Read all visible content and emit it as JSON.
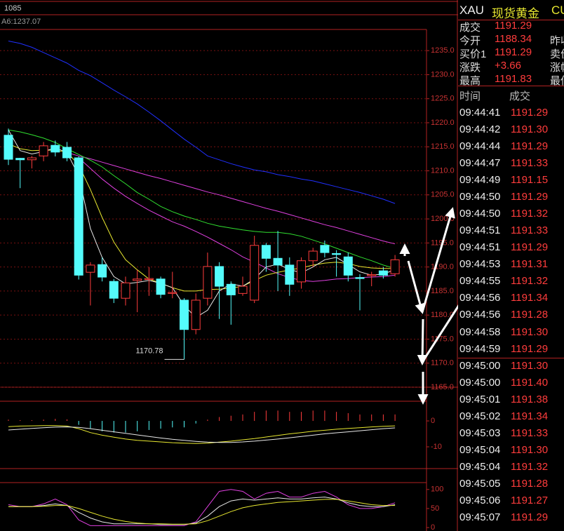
{
  "top_bar": {
    "code": "1085",
    "ma_label": "A6:1237.07"
  },
  "chart_data": [
    {
      "type": "candlestick",
      "up_color": "#ff3c3c",
      "down_color": "#54fcfc",
      "grid": true,
      "ylim": [
        1165,
        1239.4
      ],
      "yticks": [
        {
          "value": 1165,
          "label": "1165.0"
        },
        {
          "value": 1170,
          "label": "1170.0"
        },
        {
          "value": 1175,
          "label": "1175.0"
        },
        {
          "value": 1180,
          "label": "1180.0"
        },
        {
          "value": 1185,
          "label": "1185.0"
        },
        {
          "value": 1190,
          "label": "1190.0"
        },
        {
          "value": 1195,
          "label": "1195.0"
        },
        {
          "value": 1200,
          "label": "1200.0"
        },
        {
          "value": 1205,
          "label": "1205.0"
        },
        {
          "value": 1210,
          "label": "1210.0"
        },
        {
          "value": 1215,
          "label": "1215.0"
        },
        {
          "value": 1220,
          "label": "1220.0"
        },
        {
          "value": 1225,
          "label": "1225.0"
        },
        {
          "value": 1230,
          "label": "1230.0"
        },
        {
          "value": 1235,
          "label": "1235.0"
        }
      ],
      "open": [
        1217.4,
        1212.6,
        1212.3,
        1213.1,
        1215.3,
        1214.9,
        1212.7,
        1188.9,
        1190.5,
        1187,
        1183.5,
        1187.2,
        1187.4,
        1187.5,
        1184.5,
        1183.1,
        1177,
        1183.5,
        1190.1,
        1186.4,
        1184.5,
        1183.1,
        1194.5,
        1191.8,
        1190.4,
        1186.9,
        1191.3,
        1194.5,
        1192.8,
        1192.1,
        1187.8,
        1188.2,
        1189.2,
        1188.6
      ],
      "high": [
        1218.8,
        1212.7,
        1213.1,
        1216,
        1216.3,
        1216,
        1213,
        1191,
        1192,
        1187.5,
        1188,
        1189.4,
        1190,
        1188,
        1189,
        1183.5,
        1184.5,
        1193,
        1191,
        1187,
        1188,
        1196.5,
        1195,
        1197.5,
        1192,
        1192,
        1194,
        1195.5,
        1193.5,
        1193,
        1188.5,
        1189,
        1190,
        1192.5
      ],
      "low": [
        1211.2,
        1206.4,
        1210.5,
        1212,
        1213,
        1212,
        1187.4,
        1182,
        1187,
        1182.5,
        1182,
        1180.6,
        1184,
        1183.5,
        1183.5,
        1170.78,
        1176,
        1182,
        1179.2,
        1178,
        1184,
        1182.5,
        1189,
        1185,
        1184,
        1185.5,
        1190,
        1192,
        1188,
        1187,
        1181,
        1186,
        1187.6,
        1188
      ],
      "close": [
        1212.4,
        1212.3,
        1212.7,
        1215.2,
        1213.9,
        1212.7,
        1188.3,
        1190.4,
        1187.9,
        1183.5,
        1186.7,
        1187.5,
        1187.6,
        1184.3,
        1184.7,
        1177,
        1183.1,
        1190.1,
        1186,
        1184.2,
        1186,
        1194.5,
        1191.8,
        1190.4,
        1186.4,
        1191.3,
        1193.3,
        1193,
        1192.6,
        1188.3,
        1187.6,
        1188.4,
        1188.3,
        1191.5
      ],
      "lines": [
        {
          "color": "#2030ff",
          "values": [
            1237,
            1236.5,
            1235.7,
            1234.6,
            1233.5,
            1232.4,
            1230.9,
            1229.8,
            1228.3,
            1226.8,
            1225.4,
            1223.9,
            1222.2,
            1220.4,
            1218.5,
            1216.6,
            1214.9,
            1213.1,
            1212.3,
            1211.5,
            1210.8,
            1210.2,
            1209.8,
            1209.2,
            1208.8,
            1208.3,
            1207.9,
            1207.3,
            1206.7,
            1206.1,
            1205.5,
            1204.8,
            1204.1,
            1203.2
          ]
        },
        {
          "color": "#e040e0",
          "values": [
            null,
            null,
            null,
            null,
            null,
            1213.8,
            1213.1,
            1212.5,
            1211.8,
            1211.1,
            1210.4,
            1209.7,
            1209,
            1208.4,
            1207.7,
            1207,
            1206.3,
            1205.6,
            1205,
            1204.3,
            1203.6,
            1202.9,
            1202.2,
            1201.6,
            1200.9,
            1200.2,
            1199.5,
            1198.8,
            1198.2,
            1197.5,
            1196.8,
            1196.1,
            1195.4,
            1194.8
          ]
        },
        {
          "color": "#30e030",
          "values": [
            1218.5,
            1218.1,
            1217.5,
            1216.8,
            1215.9,
            1214.6,
            1213.4,
            1212.2,
            1210.8,
            1209,
            1207.3,
            1205.5,
            1204.1,
            1202.6,
            1201.5,
            1200.6,
            1199.9,
            1199.1,
            1198.5,
            1198.1,
            1197.7,
            1197.4,
            1197.2,
            1197.2,
            1196.9,
            1196.4,
            1195.6,
            1194.8,
            1193.9,
            1193,
            1192.1,
            1191.3,
            1190.4,
            1189.7
          ]
        },
        {
          "color": "#e040e0",
          "values": [
            null,
            null,
            null,
            null,
            null,
            null,
            1212.7,
            1210.5,
            1208.3,
            1206.4,
            1204.7,
            1203.2,
            1201.8,
            1200.6,
            1199.4,
            1198.5,
            1197.4,
            1196.2,
            1194.9,
            1193.6,
            1192.1,
            1191,
            1189.8,
            1188.6,
            1187.8,
            1187.2,
            1187,
            1187.2,
            1187.5,
            1187.6,
            1187.8,
            1187.9,
            1188,
            1188.3
          ]
        },
        {
          "color": "#e8e830",
          "values": [
            1215.6,
            1214.6,
            1214.2,
            1214.3,
            1214.3,
            1213.9,
            1211.2,
            1206.1,
            1200.3,
            1195.2,
            1191.5,
            1189.4,
            1187.5,
            1186.6,
            1185.7,
            1185,
            1185,
            1185.3,
            1185.4,
            1185.6,
            1186,
            1187.2,
            1188.3,
            1188.9,
            1189.4,
            1189.8,
            1190.4,
            1190.8,
            1191,
            1190.7,
            1190.1,
            1189.8,
            1189.7,
            1189.7
          ]
        },
        {
          "color": "#e8e8e8",
          "values": [
            1218.5,
            1214.2,
            1213.5,
            1214,
            1214.8,
            1213.8,
            1209,
            1198,
            1192,
            1188,
            1186.5,
            1186.8,
            1187.2,
            1186.6,
            1185.7,
            1182,
            1179.5,
            1181,
            1185,
            1186.5,
            1186,
            1187.5,
            1190,
            1190.6,
            1189.5,
            1188.8,
            1190,
            1191.5,
            1192,
            1190.5,
            1189,
            1188.3,
            1188.5,
            1189.5
          ]
        }
      ],
      "annotation": "1170.78"
    },
    {
      "type": "macd",
      "up_color": "#ff3c3c",
      "down_color": "#54fcfc",
      "ylim": [
        -18.4,
        7.6
      ],
      "yticks": [
        -10,
        0
      ],
      "values": [
        0.5,
        0.3,
        0.3,
        0.5,
        0.8,
        0.6,
        -1.5,
        -3,
        -4,
        -4.5,
        -4.5,
        -4,
        -3.5,
        -3,
        -2.5,
        -2.5,
        -1,
        0.5,
        1.5,
        2,
        2.5,
        3.5,
        4,
        4,
        3.5,
        3.5,
        4,
        4,
        3.5,
        3,
        2.5,
        2.5,
        2.5,
        2.5
      ],
      "lines": [
        {
          "color": "#e8e830",
          "values": [
            -2.2,
            -2,
            -1.9,
            -1.8,
            -1.8,
            -2,
            -3,
            -4.5,
            -5.5,
            -6.3,
            -7,
            -7.5,
            -7.8,
            -8.1,
            -8.4,
            -8.6,
            -8.7,
            -8.6,
            -8.2,
            -7.8,
            -7.3,
            -6.8,
            -6.2,
            -5.6,
            -5,
            -4.5,
            -4,
            -3.6,
            -3.2,
            -2.9,
            -2.6,
            -2.3,
            -2.1,
            -1.9
          ]
        },
        {
          "color": "#e8e8e8",
          "values": [
            -3.5,
            -3.2,
            -2.9,
            -2.6,
            -2.4,
            -2.3,
            -2.5,
            -3,
            -3.6,
            -4.2,
            -4.8,
            -5.4,
            -6,
            -6.6,
            -7.1,
            -7.5,
            -7.9,
            -8.2,
            -8.3,
            -8.3,
            -8.1,
            -7.8,
            -7.4,
            -7,
            -6.5,
            -6,
            -5.5,
            -5,
            -4.6,
            -4.2,
            -3.8,
            -3.4,
            -3,
            -2.7
          ]
        }
      ]
    },
    {
      "type": "line",
      "ylim": [
        -9,
        118
      ],
      "yticks": [
        0,
        50,
        100
      ],
      "lines": [
        {
          "color": "#e040e0",
          "values": [
            60,
            55,
            55,
            62,
            75,
            60,
            20,
            5,
            5,
            5,
            5,
            5,
            5,
            5,
            5,
            5,
            15,
            55,
            95,
            100,
            95,
            75,
            90,
            95,
            80,
            80,
            90,
            95,
            80,
            60,
            50,
            50,
            55,
            65
          ]
        },
        {
          "color": "#e8e8e8",
          "values": [
            55,
            55,
            55,
            58,
            62,
            58,
            40,
            25,
            15,
            10,
            10,
            10,
            10,
            8,
            8,
            8,
            12,
            30,
            55,
            70,
            75,
            72,
            75,
            78,
            75,
            75,
            78,
            80,
            75,
            65,
            58,
            55,
            55,
            60
          ]
        },
        {
          "color": "#e8e830",
          "values": [
            55,
            55,
            55,
            56,
            58,
            58,
            50,
            40,
            30,
            22,
            16,
            12,
            10,
            10,
            9,
            9,
            10,
            18,
            30,
            42,
            52,
            58,
            62,
            66,
            68,
            70,
            72,
            74,
            74,
            70,
            65,
            60,
            58,
            58
          ]
        }
      ]
    }
  ],
  "quote_panel": {
    "symbol": "XAU",
    "name": "现货黄金",
    "extra": "CU",
    "rows": [
      {
        "label": "成交",
        "value": "1191.29"
      },
      {
        "label": "今开",
        "value": "1188.34",
        "label2": "昨收"
      },
      {
        "label": "买价1",
        "value": "1191.29",
        "label2": "卖价"
      },
      {
        "label": "涨跌",
        "value": "+3.66",
        "label2": "涨幅"
      },
      {
        "label": "最高",
        "value": "1191.83",
        "label2": "最低"
      }
    ]
  },
  "trades": {
    "header": [
      "时间",
      "成交"
    ],
    "rows": [
      [
        "09:44:41",
        "1191.29"
      ],
      [
        "09:44:42",
        "1191.30"
      ],
      [
        "09:44:44",
        "1191.29"
      ],
      [
        "09:44:47",
        "1191.33"
      ],
      [
        "09:44:49",
        "1191.15"
      ],
      [
        "09:44:50",
        "1191.29"
      ],
      [
        "09:44:50",
        "1191.32"
      ],
      [
        "09:44:51",
        "1191.33"
      ],
      [
        "09:44:51",
        "1191.29"
      ],
      [
        "09:44:53",
        "1191.31"
      ],
      [
        "09:44:55",
        "1191.32"
      ],
      [
        "09:44:56",
        "1191.34"
      ],
      [
        "09:44:56",
        "1191.28"
      ],
      [
        "09:44:58",
        "1191.30"
      ],
      [
        "09:44:59",
        "1191.29"
      ],
      [
        "09:45:00",
        "1191.30"
      ],
      [
        "09:45:00",
        "1191.40"
      ],
      [
        "09:45:01",
        "1191.38"
      ],
      [
        "09:45:02",
        "1191.34"
      ],
      [
        "09:45:03",
        "1191.33"
      ],
      [
        "09:45:04",
        "1191.30"
      ],
      [
        "09:45:04",
        "1191.32"
      ],
      [
        "09:45:05",
        "1191.28"
      ],
      [
        "09:45:06",
        "1191.27"
      ],
      [
        "09:45:07",
        "1191.29"
      ]
    ]
  }
}
